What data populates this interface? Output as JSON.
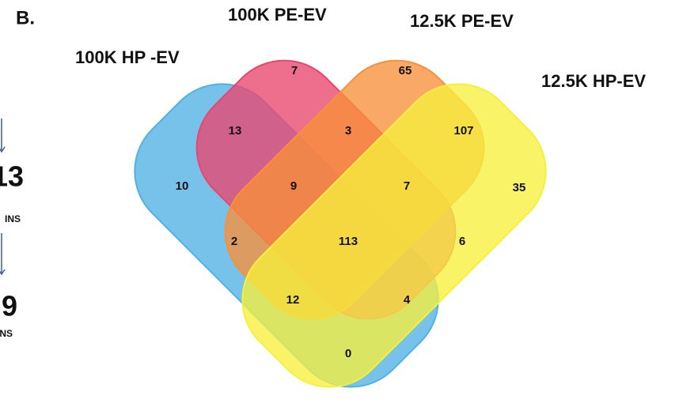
{
  "panel_label": "B.",
  "sets": [
    {
      "label": "100K HP -EV",
      "color": "#4fb1e6"
    },
    {
      "label": "100K PE-EV",
      "color": "#e9456e"
    },
    {
      "label": "12.5K PE-EV",
      "color": "#f8903a"
    },
    {
      "label": "12.5K HP-EV",
      "color": "#f6f03c"
    }
  ],
  "regions": [
    "7",
    "65",
    "13",
    "3",
    "107",
    "10",
    "9",
    "7",
    "35",
    "2",
    "113",
    "6",
    "12",
    "4",
    "0"
  ],
  "side_fragments": [
    "13",
    "INS",
    "9",
    "INS"
  ]
}
